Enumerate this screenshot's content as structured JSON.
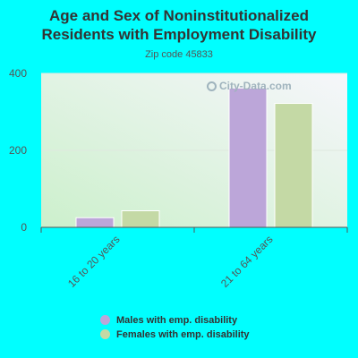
{
  "chart_data": {
    "type": "bar",
    "title": "Age and Sex of Noninstitutionalized Residents with Employment Disability",
    "title_lines": [
      "Age and Sex of Noninstitutionalized",
      "Residents with Employment Disability"
    ],
    "subtitle": "Zip code 45833",
    "categories": [
      "16 to 20 years",
      "21 to 64 years"
    ],
    "series": [
      {
        "name": "Males with emp. disability",
        "values": [
          25,
          362
        ],
        "color": "#bca6d9"
      },
      {
        "name": "Females with emp. disability",
        "values": [
          43,
          322
        ],
        "color": "#c4d9a5"
      }
    ],
    "ylim": [
      0,
      400
    ],
    "yticks": [
      0,
      200,
      400
    ],
    "grid": true,
    "legend_position": "bottom",
    "watermark": "City-Data.com"
  }
}
